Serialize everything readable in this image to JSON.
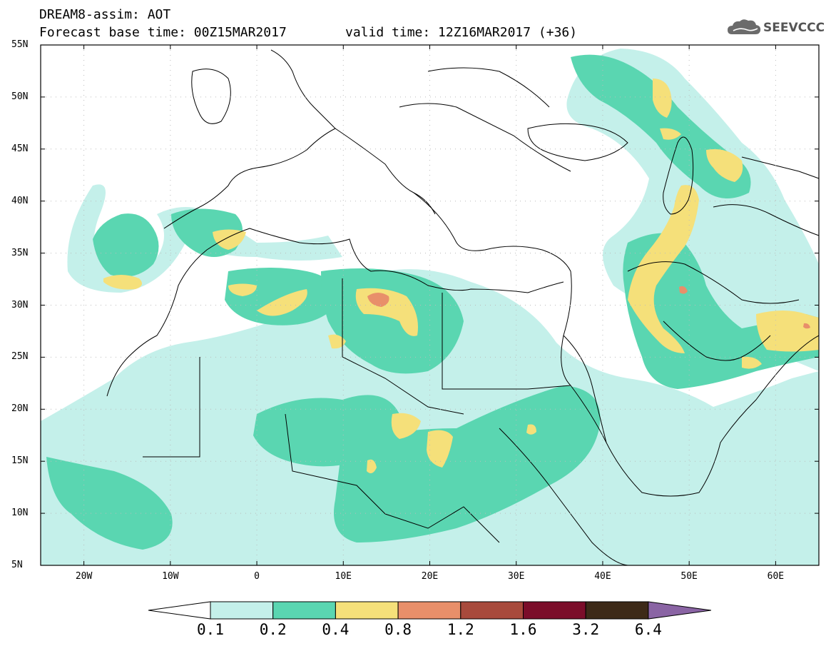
{
  "header": {
    "title_line1": "DREAM8-assim: AOT",
    "title_line2": "Forecast base time: 00Z15MAR2017",
    "valid_time": "valid time: 12Z16MAR2017 (+36)",
    "logo_text": "SEEVCCC"
  },
  "map": {
    "lat_labels": [
      "55N",
      "50N",
      "45N",
      "40N",
      "35N",
      "30N",
      "25N",
      "20N",
      "15N",
      "10N",
      "5N"
    ],
    "lon_labels": [
      "20W",
      "10W",
      "0",
      "10E",
      "20E",
      "30E",
      "40E",
      "50E",
      "60E"
    ],
    "lon_range": [
      -25,
      65
    ],
    "lat_range": [
      5,
      55
    ]
  },
  "colorbar": {
    "levels": [
      "0.1",
      "0.2",
      "0.4",
      "0.8",
      "1.2",
      "1.6",
      "3.2",
      "6.4"
    ],
    "colors": [
      "#c4f0ea",
      "#5ad6b1",
      "#f5e07a",
      "#e88f6a",
      "#a84a3c",
      "#7b0d2a",
      "#3d2a18",
      "#8a64a4"
    ],
    "under_color": "#ffffff"
  }
}
